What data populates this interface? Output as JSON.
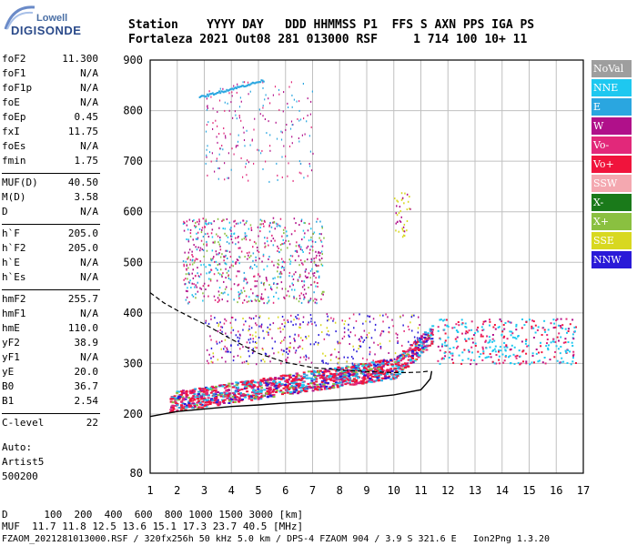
{
  "logo": {
    "line1": "Lowell",
    "line2": "DIGISONDE"
  },
  "header": {
    "labels": "Station    YYYY DAY   DDD HHMMSS P1  FFS S AXN PPS IGA PS",
    "values": "Fortaleza 2021 Out08 281 013000 RSF     1 714 100 10+ 11"
  },
  "params_group1": [
    {
      "label": "foF2",
      "value": "11.300"
    },
    {
      "label": "foF1",
      "value": "N/A"
    },
    {
      "label": "foF1p",
      "value": "N/A"
    },
    {
      "label": "foE",
      "value": "N/A"
    },
    {
      "label": "foEp",
      "value": "0.45"
    },
    {
      "label": "fxI",
      "value": "11.75"
    },
    {
      "label": "foEs",
      "value": "N/A"
    },
    {
      "label": "fmin",
      "value": "1.75"
    }
  ],
  "params_group2": [
    {
      "label": "MUF(D)",
      "value": "40.50"
    },
    {
      "label": "M(D)",
      "value": "3.58"
    },
    {
      "label": "D",
      "value": "N/A"
    }
  ],
  "params_group3": [
    {
      "label": "h`F",
      "value": "205.0"
    },
    {
      "label": "h`F2",
      "value": "205.0"
    },
    {
      "label": "h`E",
      "value": "N/A"
    },
    {
      "label": "h`Es",
      "value": "N/A"
    }
  ],
  "params_group4": [
    {
      "label": "hmF2",
      "value": "255.7"
    },
    {
      "label": "hmF1",
      "value": "N/A"
    },
    {
      "label": "hmE",
      "value": "110.0"
    },
    {
      "label": "yF2",
      "value": "38.9"
    },
    {
      "label": "yF1",
      "value": "N/A"
    },
    {
      "label": "yE",
      "value": "20.0"
    },
    {
      "label": "B0",
      "value": "36.7"
    },
    {
      "label": "B1",
      "value": "2.54"
    }
  ],
  "params_group5": [
    {
      "label": "C-level",
      "value": "22"
    }
  ],
  "auto": {
    "line1": "Auto:",
    "line2": "Artist5",
    "line3": "500200"
  },
  "legend": [
    {
      "label": "NoVal",
      "color": "#9e9e9e"
    },
    {
      "label": "NNE",
      "color": "#1ec8f0"
    },
    {
      "label": "E",
      "color": "#2aa6e0"
    },
    {
      "label": "W",
      "color": "#b0108a"
    },
    {
      "label": "Vo-",
      "color": "#e2287a"
    },
    {
      "label": "Vo+",
      "color": "#f0143c"
    },
    {
      "label": "SSW",
      "color": "#f4a8b0"
    },
    {
      "label": "X-",
      "color": "#1a7a1a"
    },
    {
      "label": "X+",
      "color": "#8ac040"
    },
    {
      "label": "SSE",
      "color": "#d8d820"
    },
    {
      "label": "NNW",
      "color": "#2a1ad8"
    }
  ],
  "bottom": {
    "line1": "D      100  200  400  600  800 1000 1500 3000 [km]",
    "line2": "MUF  11.7 11.8 12.5 13.6 15.1 17.3 23.7 40.5 [MHz]",
    "line3": "FZAOM_2021281013000.RSF / 320fx256h 50 kHz 5.0 km / DPS-4 FZAOM 904 / 3.9 S 321.6 E   Ion2Png 1.3.20"
  },
  "chart_data": {
    "type": "scatter",
    "xlim": [
      1,
      17
    ],
    "ylim": [
      80,
      900
    ],
    "x_ticks": [
      1,
      2,
      3,
      4,
      5,
      6,
      7,
      8,
      9,
      10,
      11,
      12,
      13,
      14,
      15,
      16,
      17
    ],
    "y_ticks": [
      80,
      200,
      300,
      400,
      500,
      600,
      700,
      800,
      900
    ],
    "grid": true,
    "legend_position": "right",
    "trace_curve": {
      "x": [
        1.0,
        2.0,
        3.0,
        4.0,
        5.0,
        6.0,
        7.0,
        8.0,
        9.0,
        10.0,
        11.0,
        11.2,
        11.35,
        11.4
      ],
      "y": [
        195,
        205,
        210,
        215,
        218,
        222,
        225,
        228,
        232,
        238,
        248,
        260,
        270,
        285
      ]
    },
    "profile_curve": {
      "x": [
        1.0,
        1.5,
        2.0,
        3.0,
        4.0,
        5.0,
        6.0,
        7.0,
        8.0,
        9.0,
        10.0,
        10.5,
        11.0,
        11.3
      ],
      "y": [
        440,
        420,
        405,
        378,
        348,
        320,
        302,
        292,
        287,
        284,
        282,
        282,
        283,
        285
      ]
    }
  }
}
